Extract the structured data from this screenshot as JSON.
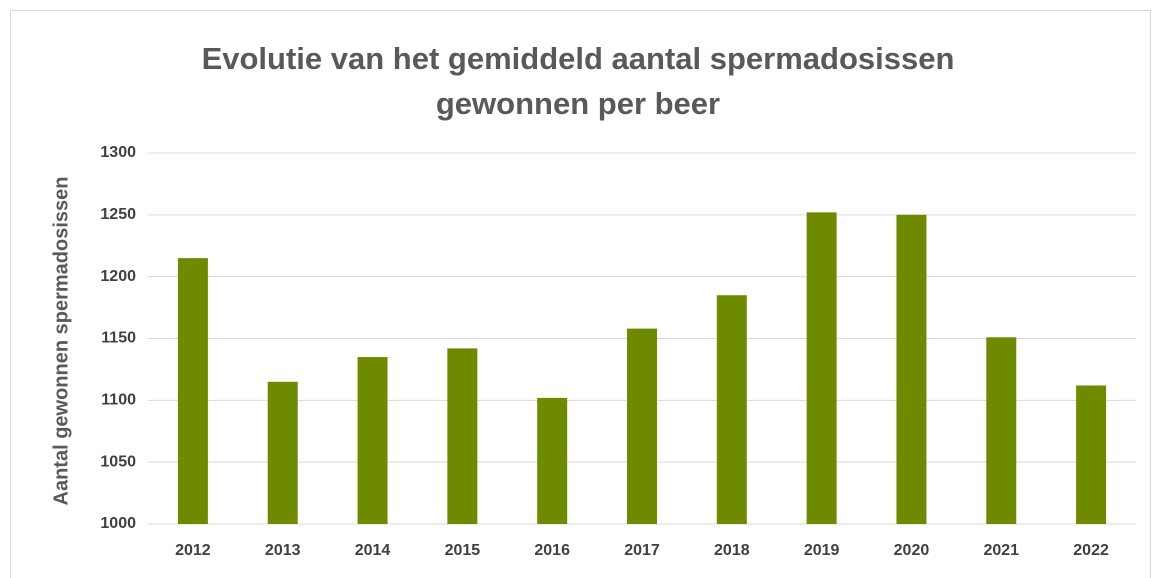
{
  "chart_data": {
    "type": "bar",
    "title": "Evolutie van het gemiddeld aantal spermadosissen gewonnen per beer",
    "y_label": "Aantal gewonnen spermadosissen",
    "categories": [
      "2012",
      "2013",
      "2014",
      "2015",
      "2016",
      "2017",
      "2018",
      "2019",
      "2020",
      "2021",
      "2022"
    ],
    "values": [
      1215,
      1115,
      1135,
      1142,
      1102,
      1158,
      1185,
      1252,
      1250,
      1151,
      1112
    ],
    "color": "#6e8b00",
    "ylim": [
      1000,
      1300
    ],
    "yticks": [
      1000,
      1050,
      1100,
      1150,
      1200,
      1250,
      1300
    ],
    "grid": true
  }
}
